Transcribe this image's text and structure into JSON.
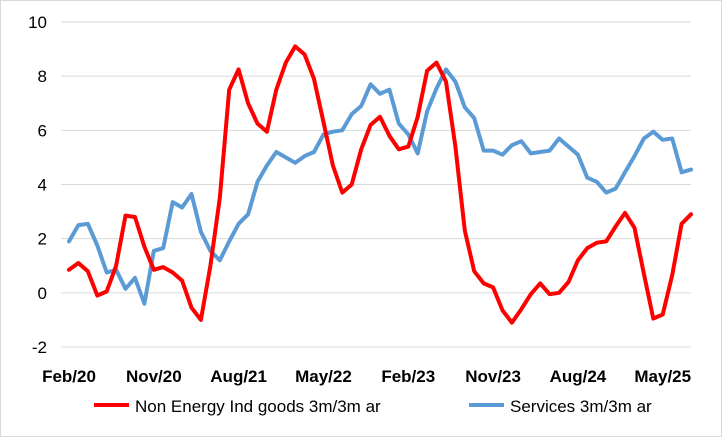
{
  "chart_data": {
    "type": "line",
    "title": "",
    "xlabel": "",
    "ylabel": "",
    "ylim": [
      -2,
      10
    ],
    "yticks": [
      -2,
      0,
      2,
      4,
      6,
      8,
      10
    ],
    "grid": "horizontal",
    "legend_position": "bottom",
    "x": [
      "Feb/20",
      "Mar/20",
      "Apr/20",
      "May/20",
      "Jun/20",
      "Jul/20",
      "Aug/20",
      "Sep/20",
      "Oct/20",
      "Nov/20",
      "Dec/20",
      "Jan/21",
      "Feb/21",
      "Mar/21",
      "Apr/21",
      "May/21",
      "Jun/21",
      "Jul/21",
      "Aug/21",
      "Sep/21",
      "Oct/21",
      "Nov/21",
      "Dec/21",
      "Jan/22",
      "Feb/22",
      "Mar/22",
      "Apr/22",
      "May/22",
      "Jun/22",
      "Jul/22",
      "Aug/22",
      "Sep/22",
      "Oct/22",
      "Nov/22",
      "Dec/22",
      "Jan/23",
      "Feb/23",
      "Mar/23",
      "Apr/23",
      "May/23",
      "Jun/23",
      "Jul/23",
      "Aug/23",
      "Sep/23",
      "Oct/23",
      "Nov/23",
      "Dec/23",
      "Jan/24",
      "Feb/24",
      "Mar/24",
      "Apr/24",
      "May/24",
      "Jun/24",
      "Jul/24",
      "Aug/24",
      "Sep/24",
      "Oct/24",
      "Nov/24",
      "Dec/24",
      "Jan/25",
      "Feb/25",
      "Mar/25",
      "Apr/25",
      "May/25",
      "Jun/25",
      "Jul/25",
      "Aug/25"
    ],
    "xtick_labels": [
      "Feb/20",
      "Nov/20",
      "Aug/21",
      "May/22",
      "Feb/23",
      "Nov/23",
      "Aug/24",
      "May/25"
    ],
    "series": [
      {
        "name": "Non Energy Ind goods 3m/3m ar",
        "color": "#ff0000",
        "values": [
          0.85,
          1.1,
          0.8,
          -0.1,
          0.05,
          1.0,
          2.85,
          2.8,
          1.7,
          0.85,
          0.95,
          0.75,
          0.45,
          -0.55,
          -1.0,
          1.0,
          3.5,
          7.5,
          8.25,
          7.0,
          6.25,
          5.95,
          7.5,
          8.5,
          9.1,
          8.8,
          7.9,
          6.3,
          4.7,
          3.7,
          4.0,
          5.3,
          6.2,
          6.5,
          5.8,
          5.3,
          5.4,
          6.5,
          8.2,
          8.5,
          7.8,
          5.4,
          2.3,
          0.8,
          0.35,
          0.2,
          -0.65,
          -1.1,
          -0.6,
          -0.05,
          0.35,
          -0.05,
          0.0,
          0.4,
          1.2,
          1.65,
          1.85,
          1.9,
          2.45,
          2.95,
          2.4,
          0.7,
          -0.95,
          -0.8,
          0.65,
          2.55,
          2.9
        ]
      },
      {
        "name": "Services 3m/3m ar",
        "color": "#5b9bd5",
        "values": [
          1.9,
          2.5,
          2.55,
          1.75,
          0.75,
          0.85,
          0.15,
          0.55,
          -0.4,
          1.55,
          1.65,
          3.35,
          3.15,
          3.65,
          2.25,
          1.55,
          1.2,
          1.9,
          2.55,
          2.9,
          4.1,
          4.7,
          5.2,
          5.0,
          4.8,
          5.05,
          5.2,
          5.85,
          5.95,
          6.0,
          6.6,
          6.9,
          7.7,
          7.35,
          7.5,
          6.25,
          5.85,
          5.15,
          6.7,
          7.55,
          8.25,
          7.8,
          6.85,
          6.45,
          5.25,
          5.25,
          5.1,
          5.45,
          5.6,
          5.15,
          5.2,
          5.25,
          5.7,
          5.4,
          5.1,
          4.25,
          4.1,
          3.7,
          3.85,
          4.45,
          5.05,
          5.7,
          5.95,
          5.65,
          5.7,
          4.45,
          4.55
        ]
      }
    ]
  }
}
